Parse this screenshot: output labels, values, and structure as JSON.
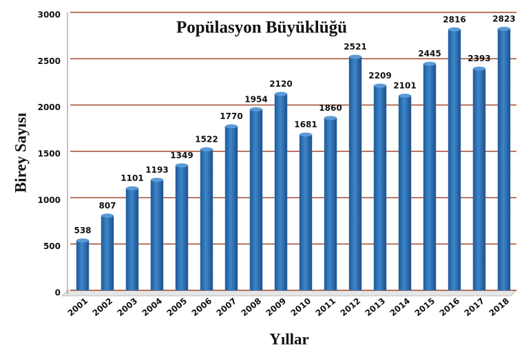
{
  "chart_data": {
    "type": "bar",
    "title": "Popülasyon Büyüklüğü",
    "x_label": "Yıllar",
    "y_label": "Birey Sayısı",
    "categories": [
      "2001",
      "2002",
      "2003",
      "2004",
      "2005",
      "2006",
      "2007",
      "2008",
      "2009",
      "2010",
      "2011",
      "2012",
      "2013",
      "2014",
      "2015",
      "2016",
      "2017",
      "2018"
    ],
    "values": [
      538,
      807,
      1101,
      1193,
      1349,
      1522,
      1770,
      1954,
      2120,
      1681,
      1860,
      2521,
      2209,
      2101,
      2445,
      2816,
      2393,
      2823
    ],
    "color": "#2e74b5",
    "grid_color": "#a0472d",
    "ylim": [
      0,
      3000
    ],
    "yticks": [
      0,
      500,
      1000,
      1500,
      2000,
      2500,
      3000
    ],
    "grid": true
  }
}
